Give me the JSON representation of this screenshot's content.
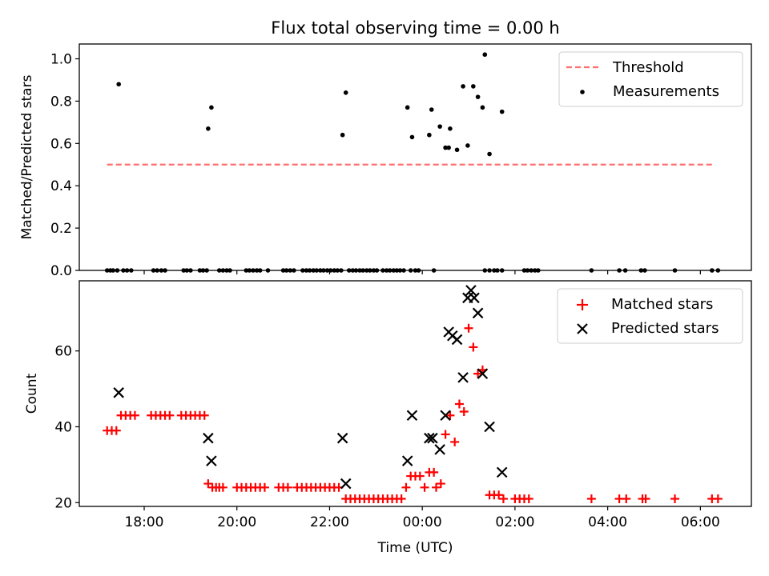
{
  "chart_data": [
    {
      "type": "scatter",
      "title": "Flux total observing time = 0.00 h",
      "xlabel": "",
      "ylabel": "Matched/Predicted stars",
      "xlim": [
        16.6,
        31.1
      ],
      "ylim": [
        0.0,
        1.07
      ],
      "yticks": [
        0.0,
        0.2,
        0.4,
        0.6,
        0.8,
        1.0
      ],
      "ytick_labels": [
        "0.0",
        "0.2",
        "0.4",
        "0.6",
        "0.8",
        "1.0"
      ],
      "xticks": [
        18,
        20,
        22,
        24,
        26,
        28,
        30
      ],
      "legend": {
        "position": "top-right",
        "entries": [
          "Threshold",
          "Measurements"
        ]
      },
      "threshold": {
        "name": "Threshold",
        "value": 0.5,
        "x": [
          17.2,
          30.3
        ],
        "color": "#ff7070",
        "style": "dashed"
      },
      "series": [
        {
          "name": "Measurements",
          "color": "#000000",
          "marker": "dot",
          "points": [
            [
              17.45,
              0.88
            ],
            [
              19.38,
              0.67
            ],
            [
              19.45,
              0.77
            ],
            [
              22.28,
              0.64
            ],
            [
              22.35,
              0.84
            ],
            [
              23.68,
              0.77
            ],
            [
              23.78,
              0.63
            ],
            [
              24.15,
              0.64
            ],
            [
              24.2,
              0.76
            ],
            [
              24.38,
              0.68
            ],
            [
              24.5,
              0.58
            ],
            [
              24.57,
              0.58
            ],
            [
              24.6,
              0.67
            ],
            [
              24.75,
              0.57
            ],
            [
              24.88,
              0.87
            ],
            [
              24.98,
              0.59
            ],
            [
              25.1,
              0.87
            ],
            [
              25.2,
              0.82
            ],
            [
              25.3,
              0.77
            ],
            [
              25.35,
              1.02
            ],
            [
              25.45,
              0.55
            ],
            [
              25.72,
              0.75
            ],
            [
              17.2,
              0.0
            ],
            [
              17.27,
              0.0
            ],
            [
              17.33,
              0.0
            ],
            [
              17.42,
              0.0
            ],
            [
              17.55,
              0.0
            ],
            [
              17.63,
              0.0
            ],
            [
              17.72,
              0.0
            ],
            [
              18.2,
              0.0
            ],
            [
              18.28,
              0.0
            ],
            [
              18.37,
              0.0
            ],
            [
              18.45,
              0.0
            ],
            [
              18.85,
              0.0
            ],
            [
              18.92,
              0.0
            ],
            [
              19.0,
              0.0
            ],
            [
              19.2,
              0.0
            ],
            [
              19.27,
              0.0
            ],
            [
              19.35,
              0.0
            ],
            [
              19.62,
              0.0
            ],
            [
              19.7,
              0.0
            ],
            [
              19.78,
              0.0
            ],
            [
              19.85,
              0.0
            ],
            [
              20.2,
              0.0
            ],
            [
              20.27,
              0.0
            ],
            [
              20.35,
              0.0
            ],
            [
              20.43,
              0.0
            ],
            [
              20.5,
              0.0
            ],
            [
              20.67,
              0.0
            ],
            [
              21.0,
              0.0
            ],
            [
              21.07,
              0.0
            ],
            [
              21.15,
              0.0
            ],
            [
              21.23,
              0.0
            ],
            [
              21.42,
              0.0
            ],
            [
              21.5,
              0.0
            ],
            [
              21.57,
              0.0
            ],
            [
              21.65,
              0.0
            ],
            [
              21.72,
              0.0
            ],
            [
              21.8,
              0.0
            ],
            [
              21.87,
              0.0
            ],
            [
              21.95,
              0.0
            ],
            [
              22.02,
              0.0
            ],
            [
              22.1,
              0.0
            ],
            [
              22.17,
              0.0
            ],
            [
              22.25,
              0.0
            ],
            [
              22.42,
              0.0
            ],
            [
              22.5,
              0.0
            ],
            [
              22.57,
              0.0
            ],
            [
              22.65,
              0.0
            ],
            [
              22.72,
              0.0
            ],
            [
              22.8,
              0.0
            ],
            [
              22.87,
              0.0
            ],
            [
              22.95,
              0.0
            ],
            [
              23.02,
              0.0
            ],
            [
              23.15,
              0.0
            ],
            [
              23.23,
              0.0
            ],
            [
              23.3,
              0.0
            ],
            [
              23.38,
              0.0
            ],
            [
              23.45,
              0.0
            ],
            [
              23.52,
              0.0
            ],
            [
              23.6,
              0.0
            ],
            [
              23.75,
              0.0
            ],
            [
              23.85,
              0.0
            ],
            [
              23.92,
              0.0
            ],
            [
              24.25,
              0.0
            ],
            [
              25.35,
              0.0
            ],
            [
              25.45,
              0.0
            ],
            [
              25.55,
              0.0
            ],
            [
              25.62,
              0.0
            ],
            [
              25.72,
              0.0
            ],
            [
              26.2,
              0.0
            ],
            [
              26.27,
              0.0
            ],
            [
              26.35,
              0.0
            ],
            [
              26.43,
              0.0
            ],
            [
              26.5,
              0.0
            ],
            [
              27.65,
              0.0
            ],
            [
              28.25,
              0.0
            ],
            [
              28.38,
              0.0
            ],
            [
              28.72,
              0.0
            ],
            [
              28.8,
              0.0
            ],
            [
              29.45,
              0.0
            ],
            [
              30.25,
              0.0
            ],
            [
              30.38,
              0.0
            ]
          ]
        }
      ]
    },
    {
      "type": "scatter",
      "title": "",
      "xlabel": "Time (UTC)",
      "ylabel": "Count",
      "xlim": [
        16.6,
        31.1
      ],
      "ylim": [
        19,
        78.5
      ],
      "yticks": [
        20,
        40,
        60
      ],
      "ytick_labels": [
        "20",
        "40",
        "60"
      ],
      "xticks": [
        18,
        20,
        22,
        24,
        26,
        28,
        30
      ],
      "xtick_labels": [
        "18:00",
        "20:00",
        "22:00",
        "00:00",
        "02:00",
        "04:00",
        "06:00"
      ],
      "legend": {
        "position": "top-right",
        "entries": [
          "Matched stars",
          "Predicted stars"
        ]
      },
      "series": [
        {
          "name": "Matched stars",
          "color": "#ff0000",
          "marker": "plus",
          "points": [
            [
              17.2,
              39
            ],
            [
              17.3,
              39
            ],
            [
              17.4,
              39
            ],
            [
              17.5,
              43
            ],
            [
              17.6,
              43
            ],
            [
              17.7,
              43
            ],
            [
              17.8,
              43
            ],
            [
              18.15,
              43
            ],
            [
              18.25,
              43
            ],
            [
              18.35,
              43
            ],
            [
              18.45,
              43
            ],
            [
              18.55,
              43
            ],
            [
              18.8,
              43
            ],
            [
              18.9,
              43
            ],
            [
              19.0,
              43
            ],
            [
              19.1,
              43
            ],
            [
              19.2,
              43
            ],
            [
              19.3,
              43
            ],
            [
              19.38,
              25
            ],
            [
              19.47,
              24
            ],
            [
              19.55,
              24
            ],
            [
              19.62,
              24
            ],
            [
              19.7,
              24
            ],
            [
              20.0,
              24
            ],
            [
              20.1,
              24
            ],
            [
              20.2,
              24
            ],
            [
              20.3,
              24
            ],
            [
              20.4,
              24
            ],
            [
              20.5,
              24
            ],
            [
              20.6,
              24
            ],
            [
              20.9,
              24
            ],
            [
              21.0,
              24
            ],
            [
              21.1,
              24
            ],
            [
              21.3,
              24
            ],
            [
              21.4,
              24
            ],
            [
              21.5,
              24
            ],
            [
              21.6,
              24
            ],
            [
              21.7,
              24
            ],
            [
              21.8,
              24
            ],
            [
              21.9,
              24
            ],
            [
              22.0,
              24
            ],
            [
              22.1,
              24
            ],
            [
              22.2,
              24
            ],
            [
              22.35,
              21
            ],
            [
              22.45,
              21
            ],
            [
              22.55,
              21
            ],
            [
              22.65,
              21
            ],
            [
              22.75,
              21
            ],
            [
              22.85,
              21
            ],
            [
              22.95,
              21
            ],
            [
              23.05,
              21
            ],
            [
              23.15,
              21
            ],
            [
              23.25,
              21
            ],
            [
              23.35,
              21
            ],
            [
              23.45,
              21
            ],
            [
              23.55,
              21
            ],
            [
              23.65,
              24
            ],
            [
              23.75,
              27
            ],
            [
              23.85,
              27
            ],
            [
              23.95,
              27
            ],
            [
              24.05,
              24
            ],
            [
              24.15,
              28
            ],
            [
              24.25,
              28
            ],
            [
              24.3,
              24
            ],
            [
              24.4,
              25
            ],
            [
              24.5,
              38
            ],
            [
              24.6,
              43
            ],
            [
              24.7,
              36
            ],
            [
              24.8,
              46
            ],
            [
              24.9,
              44
            ],
            [
              25.0,
              66
            ],
            [
              25.1,
              61
            ],
            [
              25.2,
              54
            ],
            [
              25.3,
              55
            ],
            [
              25.45,
              22
            ],
            [
              25.55,
              22
            ],
            [
              25.65,
              22
            ],
            [
              25.75,
              21
            ],
            [
              26.0,
              21
            ],
            [
              26.1,
              21
            ],
            [
              26.2,
              21
            ],
            [
              26.3,
              21
            ],
            [
              27.65,
              21
            ],
            [
              28.25,
              21
            ],
            [
              28.4,
              21
            ],
            [
              28.75,
              21
            ],
            [
              28.82,
              21
            ],
            [
              29.45,
              21
            ],
            [
              30.25,
              21
            ],
            [
              30.38,
              21
            ]
          ]
        },
        {
          "name": "Predicted stars",
          "color": "#000000",
          "marker": "x",
          "points": [
            [
              17.45,
              49
            ],
            [
              19.38,
              37
            ],
            [
              19.45,
              31
            ],
            [
              22.28,
              37
            ],
            [
              22.35,
              25
            ],
            [
              23.68,
              31
            ],
            [
              23.78,
              43
            ],
            [
              24.15,
              37
            ],
            [
              24.22,
              37
            ],
            [
              24.38,
              34
            ],
            [
              24.5,
              43
            ],
            [
              24.57,
              65
            ],
            [
              24.65,
              64
            ],
            [
              24.75,
              63
            ],
            [
              24.88,
              53
            ],
            [
              24.98,
              74
            ],
            [
              25.05,
              76
            ],
            [
              25.12,
              74
            ],
            [
              25.2,
              70
            ],
            [
              25.3,
              54
            ],
            [
              25.45,
              40
            ],
            [
              25.72,
              28
            ]
          ]
        }
      ]
    }
  ]
}
